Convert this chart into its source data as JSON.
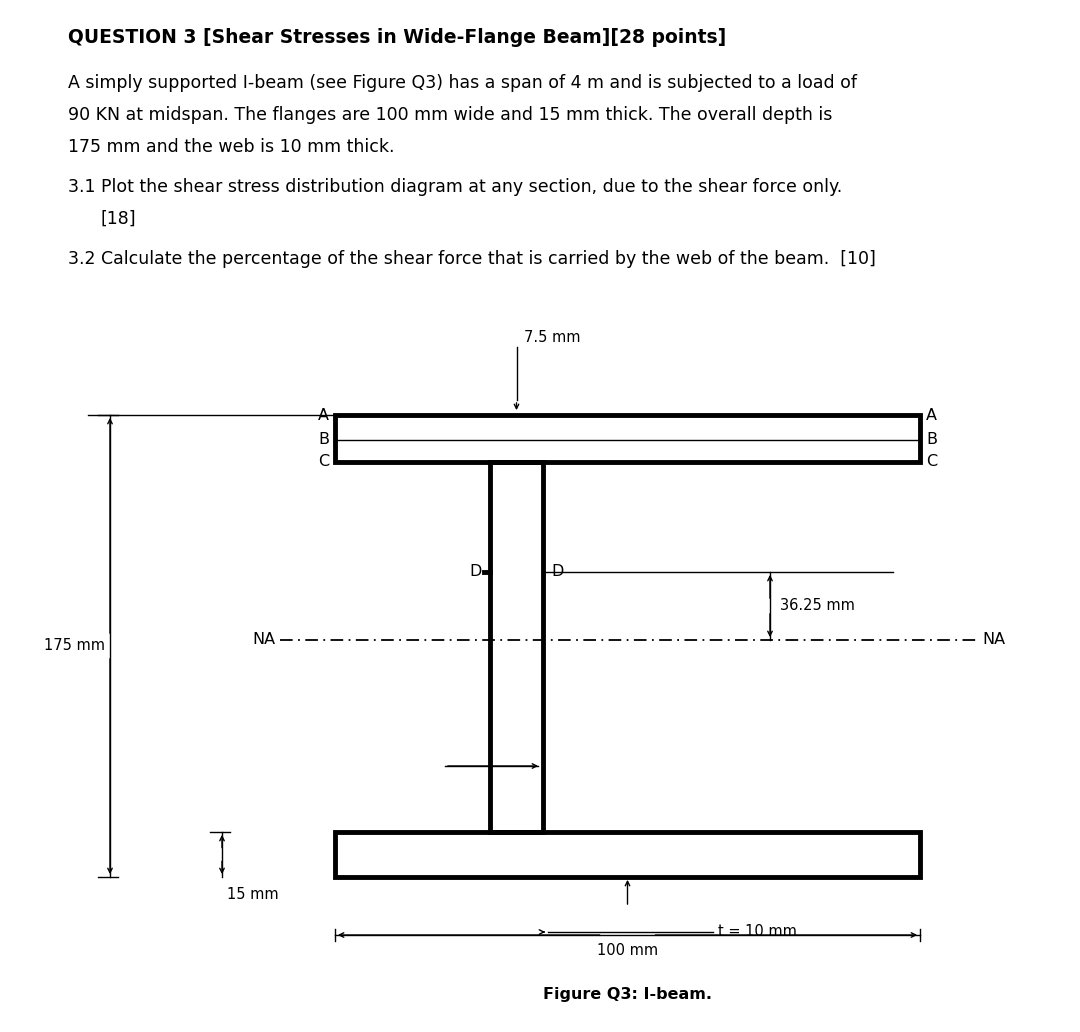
{
  "title_bold": "QUESTION 3 [Shear Stresses in Wide-Flange Beam][28 points]",
  "paragraph1": "A simply supported I-beam (see Figure Q3) has a span of 4 m and is subjected to a load of",
  "paragraph2": "90 KN at midspan. The flanges are 100 mm wide and 15 mm thick. The overall depth is",
  "paragraph3": "175 mm and the web is 10 mm thick.",
  "paragraph4": "3.1 Plot the shear stress distribution diagram at any section, due to the shear force only.",
  "paragraph5": "    [18]",
  "paragraph6": "3.2 Calculate the percentage of the shear force that is carried by the web of the beam.  [10]",
  "fig_caption": "Figure Q3: I-beam.",
  "bg_color": "#ffffff",
  "text_color": "#000000",
  "dim_75mm": "7.5 mm",
  "dim_175mm": "175 mm",
  "dim_15mm": "15 mm",
  "dim_100mm": "100 mm",
  "dim_3625mm": "36.25 mm",
  "dim_t10mm": "t = 10 mm"
}
